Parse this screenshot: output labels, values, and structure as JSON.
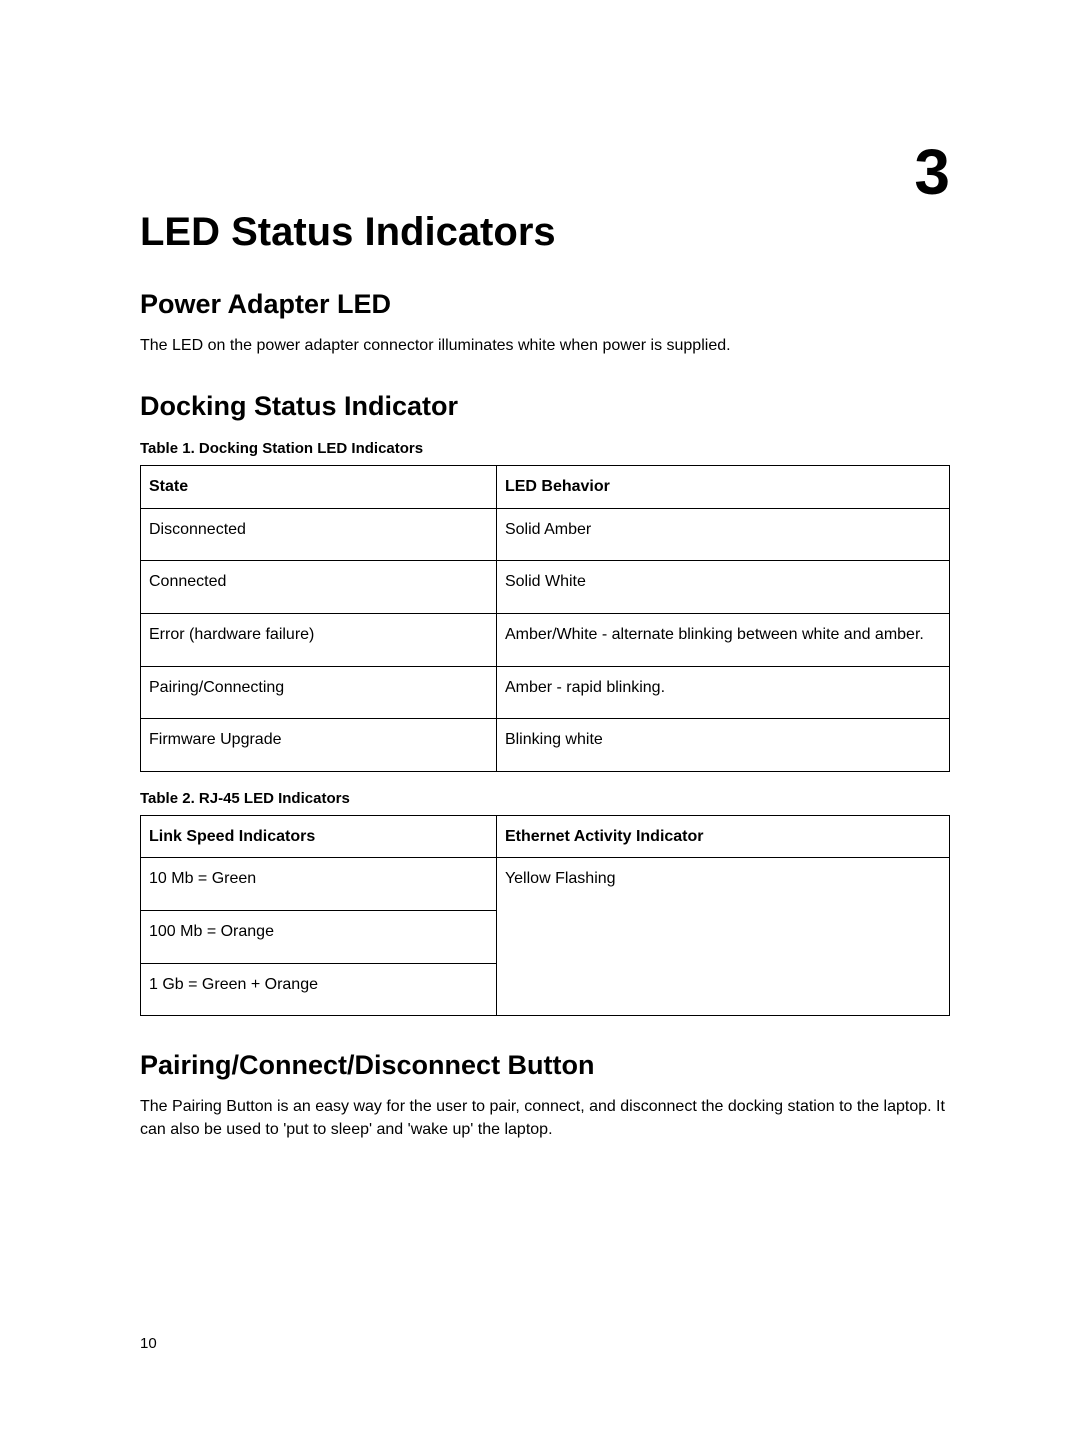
{
  "chapter_number": "3",
  "page_number": "10",
  "title": "LED Status Indicators",
  "sections": {
    "power_adapter": {
      "heading": "Power Adapter LED",
      "body": "The LED on the power adapter connector illuminates white when power is supplied."
    },
    "docking_status": {
      "heading": "Docking Status Indicator",
      "table1": {
        "caption": "Table 1. Docking Station LED Indicators",
        "columns": [
          "State",
          "LED Behavior"
        ],
        "column_widths": [
          "44%",
          "56%"
        ],
        "rows": [
          [
            "Disconnected",
            "Solid Amber"
          ],
          [
            "Connected",
            "Solid White"
          ],
          [
            "Error (hardware failure)",
            "Amber/White - alternate blinking between white and amber."
          ],
          [
            "Pairing/Connecting",
            "Amber - rapid blinking."
          ],
          [
            "Firmware Upgrade",
            "Blinking white"
          ]
        ]
      },
      "table2": {
        "caption": "Table 2. RJ-45 LED Indicators",
        "columns": [
          "Link Speed Indicators",
          "Ethernet Activity Indicator"
        ],
        "column_widths": [
          "44%",
          "56%"
        ],
        "left_rows": [
          "10 Mb = Green",
          "100 Mb = Orange",
          "1 Gb = Green + Orange"
        ],
        "right_cell": "Yellow Flashing"
      }
    },
    "pairing_button": {
      "heading": "Pairing/Connect/Disconnect Button",
      "body": "The Pairing Button is an easy way for the user to pair, connect, and disconnect the docking station to the laptop. It can also be used to 'put to sleep' and 'wake up' the laptop."
    }
  },
  "style": {
    "background_color": "#ffffff",
    "text_color": "#000000",
    "border_color": "#000000",
    "title_fontsize_pt": 30,
    "section_fontsize_pt": 20,
    "body_fontsize_pt": 12,
    "caption_fontsize_pt": 11,
    "chapter_fontsize_pt": 48,
    "font_family": "Segoe UI / Helvetica Neue / Arial"
  }
}
